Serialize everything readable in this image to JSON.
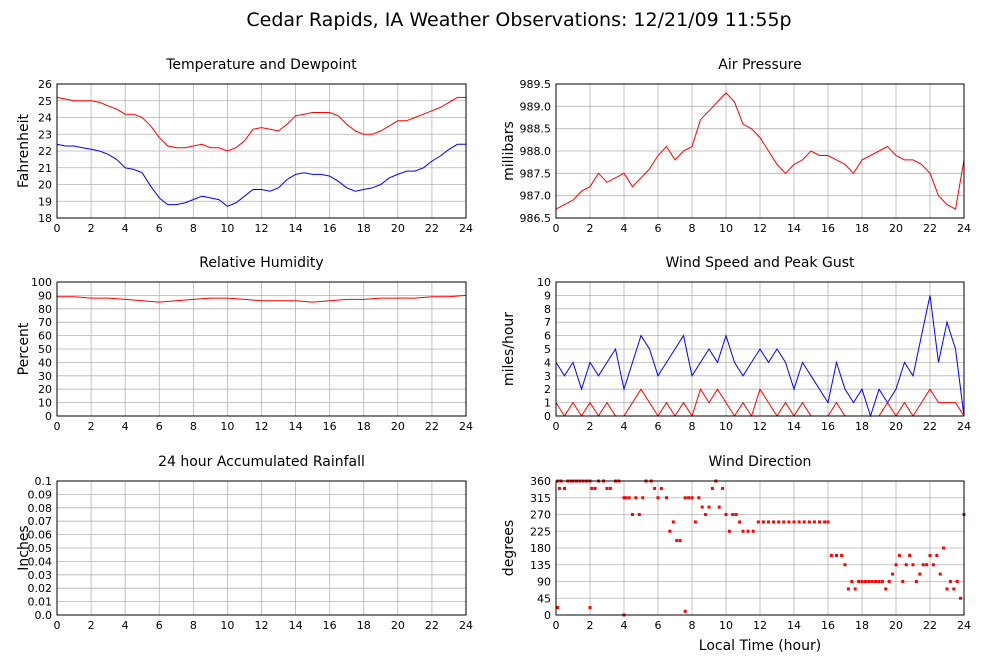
{
  "page": {
    "title": "Cedar Rapids, IA Weather Observations: 12/21/09 11:55p",
    "xlabel": "Local Time (hour)"
  },
  "colors": {
    "red": "#ff0000",
    "blue": "#0000ff",
    "grid": "#b4b4b4"
  },
  "chart_data": [
    {
      "id": "temp",
      "type": "line",
      "title": "Temperature and Dewpoint",
      "ylabel": "Fahrenheit",
      "xlim": [
        0,
        24
      ],
      "ylim": [
        18,
        26
      ],
      "xticks": [
        0,
        2,
        4,
        6,
        8,
        10,
        12,
        14,
        16,
        18,
        20,
        22,
        24
      ],
      "yticks": [
        "18",
        "19",
        "20",
        "21",
        "22",
        "23",
        "24",
        "25",
        "26"
      ],
      "grid": true,
      "series": [
        {
          "color": "#ff0000",
          "x": [
            0,
            0.5,
            1,
            1.5,
            2,
            2.5,
            3,
            3.5,
            4,
            4.5,
            5,
            5.5,
            6,
            6.5,
            7,
            7.5,
            8,
            8.5,
            9,
            9.5,
            10,
            10.5,
            11,
            11.5,
            12,
            12.5,
            13,
            13.5,
            14,
            14.5,
            15,
            15.5,
            16,
            16.5,
            17,
            17.5,
            18,
            18.5,
            19,
            19.5,
            20,
            20.5,
            21,
            21.5,
            22,
            22.5,
            23,
            23.5,
            24
          ],
          "y": [
            25.2,
            25.1,
            25.0,
            25.0,
            25.0,
            24.9,
            24.7,
            24.5,
            24.2,
            24.2,
            24.0,
            23.5,
            22.8,
            22.3,
            22.2,
            22.2,
            22.3,
            22.4,
            22.2,
            22.2,
            22.0,
            22.2,
            22.6,
            23.3,
            23.4,
            23.3,
            23.2,
            23.6,
            24.1,
            24.2,
            24.3,
            24.3,
            24.3,
            24.1,
            23.6,
            23.2,
            23.0,
            23.0,
            23.2,
            23.5,
            23.8,
            23.8,
            24.0,
            24.2,
            24.4,
            24.6,
            24.9,
            25.2,
            25.2
          ]
        },
        {
          "color": "#0000ff",
          "x": [
            0,
            0.5,
            1,
            1.5,
            2,
            2.5,
            3,
            3.5,
            4,
            4.5,
            5,
            5.5,
            6,
            6.5,
            7,
            7.5,
            8,
            8.5,
            9,
            9.5,
            10,
            10.5,
            11,
            11.5,
            12,
            12.5,
            13,
            13.5,
            14,
            14.5,
            15,
            15.5,
            16,
            16.5,
            17,
            17.5,
            18,
            18.5,
            19,
            19.5,
            20,
            20.5,
            21,
            21.5,
            22,
            22.5,
            23,
            23.5,
            24
          ],
          "y": [
            22.4,
            22.3,
            22.3,
            22.2,
            22.1,
            22.0,
            21.8,
            21.5,
            21.0,
            20.9,
            20.7,
            19.9,
            19.2,
            18.8,
            18.8,
            18.9,
            19.1,
            19.3,
            19.2,
            19.1,
            18.7,
            18.9,
            19.3,
            19.7,
            19.7,
            19.6,
            19.8,
            20.3,
            20.6,
            20.7,
            20.6,
            20.6,
            20.5,
            20.2,
            19.8,
            19.6,
            19.7,
            19.8,
            20.0,
            20.4,
            20.6,
            20.8,
            20.8,
            21.0,
            21.4,
            21.7,
            22.1,
            22.4,
            22.4
          ]
        }
      ]
    },
    {
      "id": "pres",
      "type": "line",
      "title": "Air Pressure",
      "ylabel": "millibars",
      "xlim": [
        0,
        24
      ],
      "ylim": [
        986.5,
        989.5
      ],
      "xticks": [
        0,
        2,
        4,
        6,
        8,
        10,
        12,
        14,
        16,
        18,
        20,
        22,
        24
      ],
      "yticks": [
        "986.5",
        "987.0",
        "987.5",
        "988.0",
        "988.5",
        "989.0",
        "989.5"
      ],
      "grid": true,
      "series": [
        {
          "color": "#ff0000",
          "x": [
            0,
            0.5,
            1,
            1.5,
            2,
            2.5,
            3,
            3.5,
            4,
            4.5,
            5,
            5.5,
            6,
            6.5,
            7,
            7.5,
            8,
            8.5,
            9,
            9.5,
            10,
            10.5,
            11,
            11.5,
            12,
            12.5,
            13,
            13.5,
            14,
            14.5,
            15,
            15.5,
            16,
            16.5,
            17,
            17.5,
            18,
            18.5,
            19,
            19.5,
            20,
            20.5,
            21,
            21.5,
            22,
            22.5,
            23,
            23.5,
            24
          ],
          "y": [
            986.7,
            986.8,
            986.9,
            987.1,
            987.2,
            987.5,
            987.3,
            987.4,
            987.5,
            987.2,
            987.4,
            987.6,
            987.9,
            988.1,
            987.8,
            988.0,
            988.1,
            988.7,
            988.9,
            989.1,
            989.3,
            989.1,
            988.6,
            988.5,
            988.3,
            988.0,
            987.7,
            987.5,
            987.7,
            987.8,
            988.0,
            987.9,
            987.9,
            987.8,
            987.7,
            987.5,
            987.8,
            987.9,
            988.0,
            988.1,
            987.9,
            987.8,
            987.8,
            987.7,
            987.5,
            987.0,
            986.8,
            986.7,
            987.8
          ]
        }
      ]
    },
    {
      "id": "rh",
      "type": "line",
      "title": "Relative Humidity",
      "ylabel": "Percent",
      "xlim": [
        0,
        24
      ],
      "ylim": [
        0,
        100
      ],
      "xticks": [
        0,
        2,
        4,
        6,
        8,
        10,
        12,
        14,
        16,
        18,
        20,
        22,
        24
      ],
      "yticks": [
        "0",
        "10",
        "20",
        "30",
        "40",
        "50",
        "60",
        "70",
        "80",
        "90",
        "100"
      ],
      "grid": true,
      "series": [
        {
          "color": "#ff0000",
          "x": [
            0,
            1,
            2,
            3,
            4,
            5,
            6,
            7,
            8,
            9,
            10,
            11,
            12,
            13,
            14,
            15,
            16,
            17,
            18,
            19,
            20,
            21,
            22,
            23,
            24
          ],
          "y": [
            89,
            89,
            88,
            88,
            87,
            86,
            85,
            86,
            87,
            88,
            88,
            87,
            86,
            86,
            86,
            85,
            86,
            87,
            87,
            88,
            88,
            88,
            89,
            89,
            90
          ]
        }
      ]
    },
    {
      "id": "wind",
      "type": "line",
      "title": "Wind Speed and Peak Gust",
      "ylabel": "miles/hour",
      "xlim": [
        0,
        24
      ],
      "ylim": [
        0,
        10
      ],
      "xticks": [
        0,
        2,
        4,
        6,
        8,
        10,
        12,
        14,
        16,
        18,
        20,
        22,
        24
      ],
      "yticks": [
        "0",
        "1",
        "2",
        "3",
        "4",
        "5",
        "6",
        "7",
        "8",
        "9",
        "10"
      ],
      "grid": true,
      "series": [
        {
          "color": "#0000ff",
          "x": [
            0,
            0.5,
            1,
            1.5,
            2,
            2.5,
            3,
            3.5,
            4,
            4.5,
            5,
            5.5,
            6,
            6.5,
            7,
            7.5,
            8,
            8.5,
            9,
            9.5,
            10,
            10.5,
            11,
            11.5,
            12,
            12.5,
            13,
            13.5,
            14,
            14.5,
            15,
            15.5,
            16,
            16.5,
            17,
            17.5,
            18,
            18.5,
            19,
            19.5,
            20,
            20.5,
            21,
            21.5,
            22,
            22.5,
            23,
            23.5,
            24
          ],
          "y": [
            4,
            3,
            4,
            2,
            4,
            3,
            4,
            5,
            2,
            4,
            6,
            5,
            3,
            4,
            5,
            6,
            3,
            4,
            5,
            4,
            6,
            4,
            3,
            4,
            5,
            4,
            5,
            4,
            2,
            4,
            3,
            2,
            1,
            4,
            2,
            1,
            2,
            0,
            2,
            1,
            2,
            4,
            3,
            6,
            9,
            4,
            7,
            5,
            0
          ]
        },
        {
          "color": "#ff0000",
          "x": [
            0,
            0.5,
            1,
            1.5,
            2,
            2.5,
            3,
            3.5,
            4,
            4.5,
            5,
            5.5,
            6,
            6.5,
            7,
            7.5,
            8,
            8.5,
            9,
            9.5,
            10,
            10.5,
            11,
            11.5,
            12,
            12.5,
            13,
            13.5,
            14,
            14.5,
            15,
            15.5,
            16,
            16.5,
            17,
            17.5,
            18,
            18.5,
            19,
            19.5,
            20,
            20.5,
            21,
            21.5,
            22,
            22.5,
            23,
            23.5,
            24
          ],
          "y": [
            1,
            0,
            1,
            0,
            1,
            0,
            1,
            0,
            0,
            1,
            2,
            1,
            0,
            1,
            0,
            1,
            0,
            2,
            1,
            2,
            1,
            0,
            1,
            0,
            2,
            1,
            0,
            1,
            0,
            1,
            0,
            0,
            0,
            1,
            0,
            0,
            0,
            0,
            0,
            1,
            0,
            1,
            0,
            1,
            2,
            1,
            1,
            1,
            0
          ]
        }
      ]
    },
    {
      "id": "rain",
      "type": "line",
      "title": "24 hour Accumulated Rainfall",
      "ylabel": "Inches",
      "xlim": [
        0,
        24
      ],
      "ylim": [
        0,
        0.1
      ],
      "xticks": [
        0,
        2,
        4,
        6,
        8,
        10,
        12,
        14,
        16,
        18,
        20,
        22,
        24
      ],
      "yticks": [
        "0.0",
        "0.01",
        "0.02",
        "0.03",
        "0.04",
        "0.05",
        "0.06",
        "0.07",
        "0.08",
        "0.09",
        "0.1"
      ],
      "grid": true,
      "series": [
        {
          "color": "#ff0000",
          "x": [
            0,
            24
          ],
          "y": [
            0,
            0
          ]
        }
      ]
    },
    {
      "id": "dir",
      "type": "scatter",
      "title": "Wind Direction",
      "ylabel": "degrees",
      "xlabel": "Local Time (hour)",
      "xlim": [
        0,
        24
      ],
      "ylim": [
        0,
        360
      ],
      "xticks": [
        0,
        2,
        4,
        6,
        8,
        10,
        12,
        14,
        16,
        18,
        20,
        22,
        24
      ],
      "yticks": [
        "0",
        "45",
        "90",
        "135",
        "180",
        "225",
        "270",
        "315",
        "360"
      ],
      "grid": true,
      "series": [
        {
          "color": "#ff0000",
          "x": [
            0.1,
            0.2,
            0.3,
            0.5,
            0.7,
            0.9,
            1.0,
            1.2,
            1.4,
            1.6,
            1.8,
            2.0,
            2.1,
            2.3,
            2.5,
            2.8,
            3.0,
            3.2,
            3.5,
            3.7,
            4.0,
            4.1,
            4.3,
            4.5,
            4.7,
            4.9,
            5.1,
            5.3,
            5.6,
            5.8,
            6.0,
            6.2,
            6.5,
            6.7,
            6.9,
            7.1,
            7.3,
            7.6,
            7.8,
            8.0,
            8.2,
            8.4,
            8.6,
            8.8,
            9.0,
            9.2,
            9.4,
            9.6,
            9.8,
            10.0,
            10.2,
            10.4,
            10.6,
            10.8,
            11.0,
            11.3,
            11.6,
            11.9,
            12.2,
            12.5,
            12.8,
            13.1,
            13.4,
            13.7,
            14.0,
            14.3,
            14.6,
            14.9,
            15.2,
            15.5,
            15.8,
            16.0,
            16.2,
            16.5,
            16.8,
            17.0,
            17.2,
            17.4,
            17.6,
            17.8,
            18.0,
            18.2,
            18.4,
            18.6,
            18.8,
            19.0,
            19.2,
            19.4,
            19.6,
            19.8,
            20.0,
            20.2,
            20.4,
            20.6,
            20.8,
            21.0,
            21.2,
            21.4,
            21.6,
            21.8,
            22.0,
            22.2,
            22.4,
            22.6,
            22.8,
            23.0,
            23.2,
            23.4,
            23.6,
            23.8,
            24.0,
            0.1,
            2.0,
            4.0,
            7.6
          ],
          "y": [
            360,
            340,
            360,
            340,
            360,
            360,
            360,
            360,
            360,
            360,
            360,
            360,
            340,
            340,
            360,
            360,
            340,
            340,
            360,
            360,
            315,
            315,
            315,
            270,
            315,
            270,
            315,
            360,
            360,
            340,
            315,
            340,
            315,
            225,
            250,
            200,
            200,
            315,
            315,
            315,
            250,
            315,
            290,
            270,
            290,
            340,
            360,
            290,
            340,
            270,
            225,
            270,
            270,
            250,
            225,
            225,
            225,
            250,
            250,
            250,
            250,
            250,
            250,
            250,
            250,
            250,
            250,
            250,
            250,
            250,
            250,
            250,
            160,
            160,
            160,
            135,
            70,
            90,
            70,
            90,
            90,
            90,
            90,
            90,
            90,
            90,
            90,
            70,
            90,
            110,
            135,
            160,
            90,
            135,
            160,
            135,
            90,
            110,
            135,
            135,
            160,
            135,
            160,
            110,
            180,
            70,
            90,
            70,
            90,
            45,
            270,
            20,
            20,
            0,
            10
          ]
        }
      ]
    }
  ]
}
